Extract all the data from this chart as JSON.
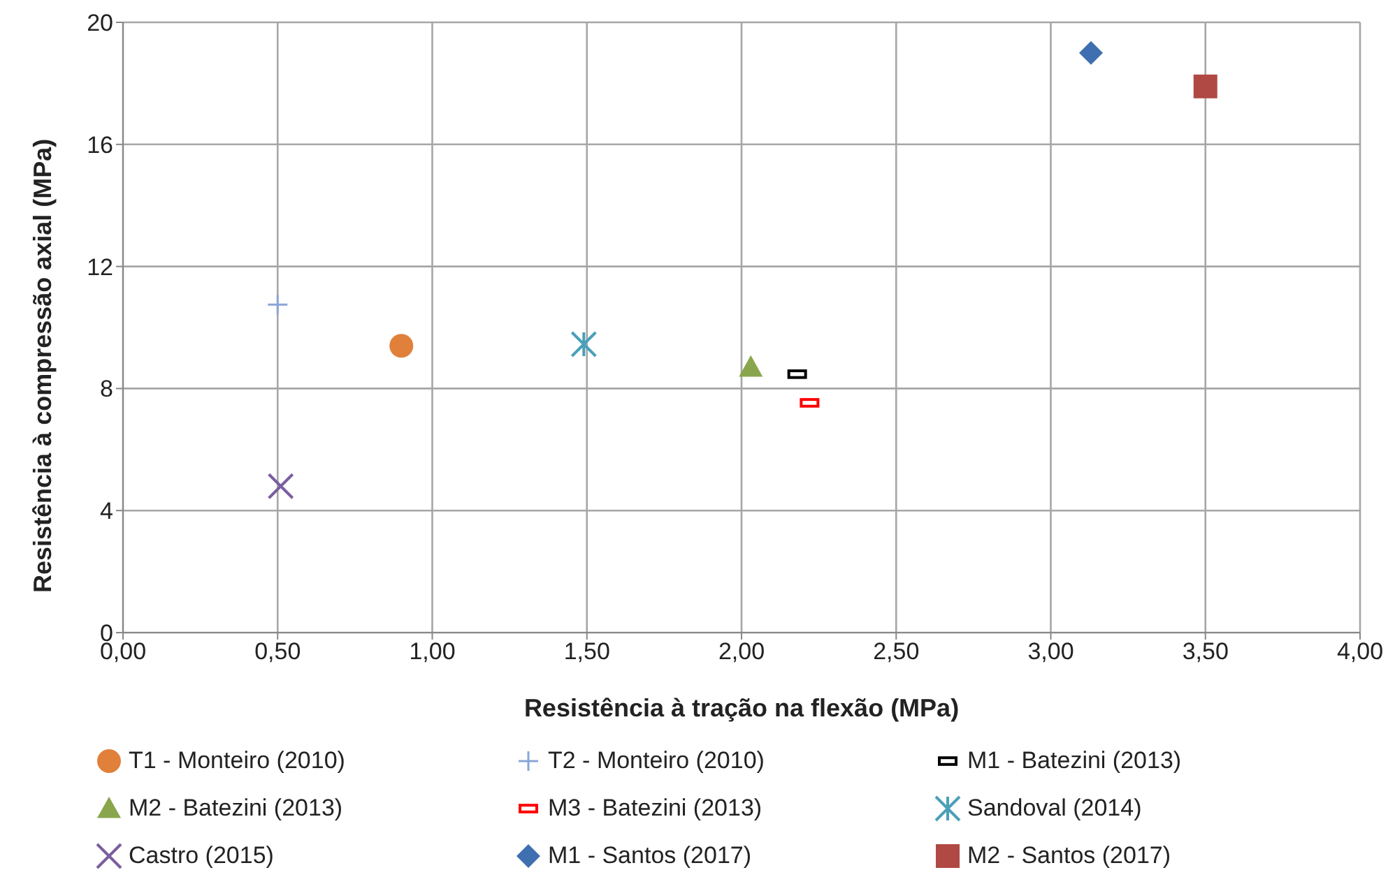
{
  "chart_data": {
    "type": "scatter",
    "xlabel": "Resistência à tração na flexão (MPa)",
    "ylabel": "Resistência à compressão axial (MPa)",
    "xlim": [
      0,
      4
    ],
    "xticks": [
      {
        "value": 0,
        "label": "0,00"
      },
      {
        "value": 0.5,
        "label": "0,50"
      },
      {
        "value": 1,
        "label": "1,00"
      },
      {
        "value": 1.5,
        "label": "1,50"
      },
      {
        "value": 2,
        "label": "2,00"
      },
      {
        "value": 2.5,
        "label": "2,50"
      },
      {
        "value": 3,
        "label": "3,00"
      },
      {
        "value": 3.5,
        "label": "3,50"
      },
      {
        "value": 4,
        "label": "4,00"
      }
    ],
    "ylim": [
      0,
      20
    ],
    "yticks": [
      0,
      4,
      8,
      12,
      16,
      20
    ],
    "grid": true,
    "legend": "bottom",
    "series": [
      {
        "name": "T1 - Monteiro (2010)",
        "color": "#e0803a",
        "marker": "circle",
        "x": [
          0.9
        ],
        "values": [
          9.4
        ]
      },
      {
        "name": "T2 - Monteiro (2010)",
        "color": "#8aa6d8",
        "marker": "plus",
        "x": [
          0.5
        ],
        "values": [
          10.75
        ]
      },
      {
        "name": "M1 - Batezini (2013)",
        "color": "#000000",
        "x": [
          2.18
        ],
        "values": [
          8.47
        ]
      },
      {
        "name": "M2 - Batezini (2013)",
        "color": "#8aa64c",
        "marker": "triangle",
        "x": [
          2.03
        ],
        "values": [
          8.7
        ]
      },
      {
        "name": "M3 - Batezini (2013)",
        "color": "#ff0000",
        "x": [
          2.22
        ],
        "values": [
          7.53
        ]
      },
      {
        "name": "Sandoval (2014)",
        "color": "#4aa0b8",
        "marker": "cross",
        "x": [
          1.49
        ],
        "values": [
          9.45
        ]
      },
      {
        "name": "Castro (2015)",
        "color": "#7a5ea0",
        "marker": "x",
        "x": [
          0.51
        ],
        "values": [
          4.8
        ]
      },
      {
        "name": "M1 - Santos (2017)",
        "color": "#3f6fb0",
        "marker": "diamond",
        "x": [
          3.13
        ],
        "values": [
          19.0
        ]
      },
      {
        "name": "M2 - Santos (2017)",
        "color": "#b04844",
        "marker": "square",
        "x": [
          3.5
        ],
        "values": [
          17.9
        ]
      }
    ]
  }
}
